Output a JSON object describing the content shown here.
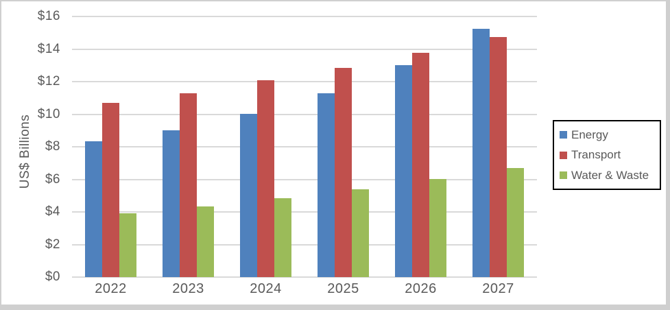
{
  "chart_data": {
    "type": "bar",
    "title": "",
    "categories": [
      "2022",
      "2023",
      "2024",
      "2025",
      "2026",
      "2027"
    ],
    "series": [
      {
        "name": "Energy",
        "color": "#4F81BD",
        "values": [
          8.35,
          9.0,
          10.0,
          11.3,
          13.0,
          15.25
        ]
      },
      {
        "name": "Transport",
        "color": "#C0504D",
        "values": [
          10.7,
          11.3,
          12.1,
          12.85,
          13.75,
          14.75
        ]
      },
      {
        "name": "Water & Waste",
        "color": "#9BBB59",
        "values": [
          3.9,
          4.35,
          4.85,
          5.4,
          6.0,
          6.7
        ]
      }
    ],
    "xlabel": "",
    "ylabel": "US$ Billions",
    "ylim": [
      0,
      16
    ],
    "ytick_step": 2,
    "ytick_labels": [
      "$0",
      "$2",
      "$4",
      "$6",
      "$8",
      "$10",
      "$12",
      "$14",
      "$16"
    ],
    "grid": true,
    "legend_position": "right"
  },
  "style": {
    "gridline_color": "#D9D9D9",
    "axis_text_color": "#595959",
    "legend_border_color": "#000000",
    "frame_border_color": "#CFCFCF",
    "background_color": "#FFFFFF"
  }
}
